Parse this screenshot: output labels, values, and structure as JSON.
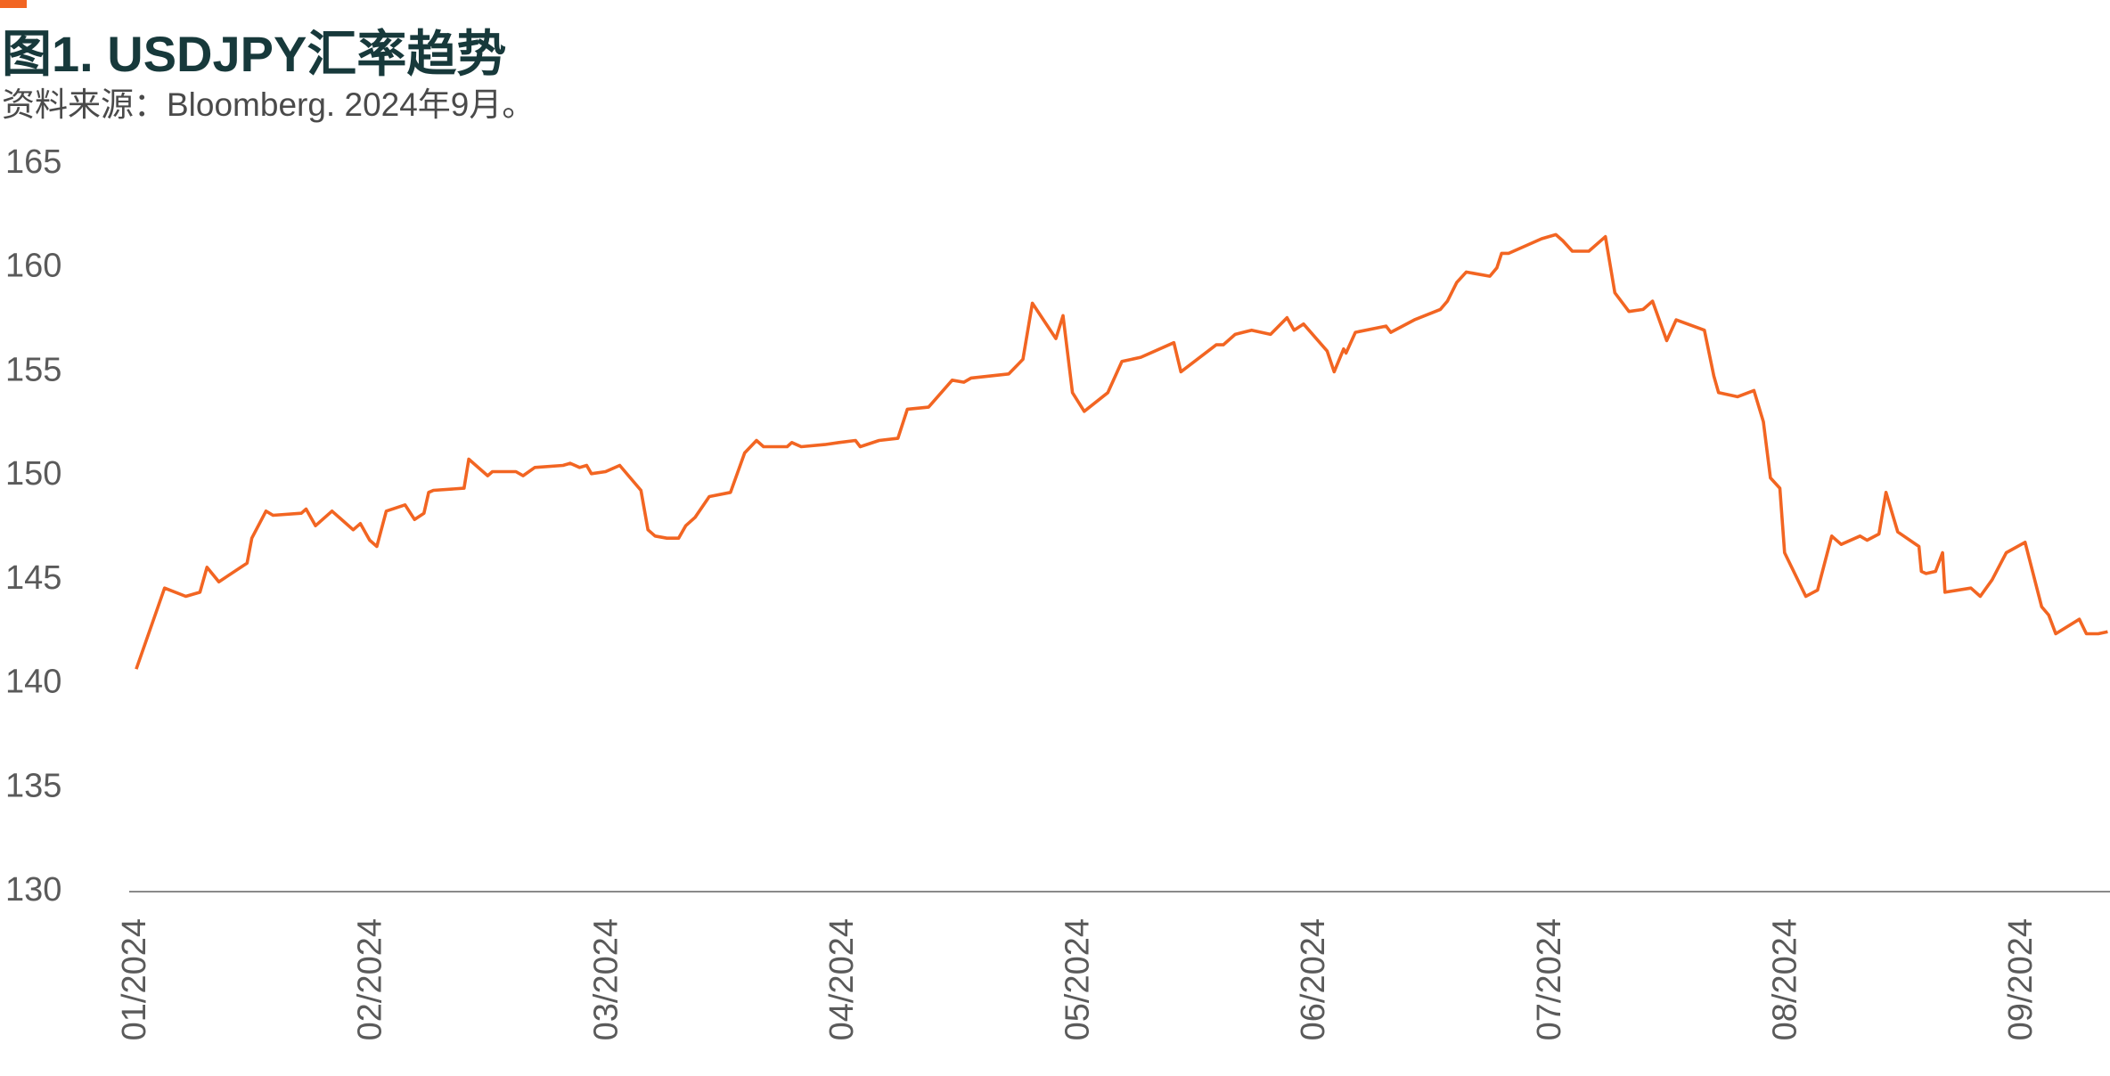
{
  "chart_data": {
    "type": "line",
    "title": "图1. USDJPY汇率趋势",
    "subtitle": "资料来源：Bloomberg. 2024年9月。",
    "x": [
      0,
      0.12,
      0.21,
      0.27,
      0.3,
      0.35,
      0.47,
      0.49,
      0.55,
      0.58,
      0.7,
      0.72,
      0.76,
      0.79,
      0.83,
      0.92,
      0.95,
      0.99,
      1.02,
      1.06,
      1.14,
      1.18,
      1.22,
      1.24,
      1.26,
      1.39,
      1.41,
      1.49,
      1.51,
      1.61,
      1.64,
      1.69,
      1.81,
      1.84,
      1.88,
      1.91,
      1.93,
      1.99,
      2.05,
      2.14,
      2.17,
      2.2,
      2.25,
      2.3,
      2.33,
      2.37,
      2.43,
      2.52,
      2.58,
      2.63,
      2.66,
      2.76,
      2.78,
      2.82,
      2.92,
      2.98,
      3.05,
      3.07,
      3.15,
      3.23,
      3.27,
      3.36,
      3.46,
      3.51,
      3.54,
      3.7,
      3.76,
      3.8,
      3.9,
      3.93,
      3.97,
      4.02,
      4.12,
      4.18,
      4.26,
      4.4,
      4.43,
      4.58,
      4.61,
      4.66,
      4.73,
      4.81,
      4.88,
      4.91,
      4.95,
      5.05,
      5.08,
      5.12,
      5.13,
      5.17,
      5.3,
      5.32,
      5.42,
      5.53,
      5.56,
      5.6,
      5.64,
      5.74,
      5.77,
      5.79,
      5.82,
      5.96,
      6.02,
      6.05,
      6.09,
      6.16,
      6.23,
      6.27,
      6.33,
      6.39,
      6.43,
      6.49,
      6.53,
      6.65,
      6.69,
      6.71,
      6.79,
      6.86,
      6.9,
      6.93,
      6.97,
      6.99,
      7.08,
      7.13,
      7.19,
      7.23,
      7.31,
      7.34,
      7.39,
      7.42,
      7.47,
      7.56,
      7.57,
      7.59,
      7.63,
      7.66,
      7.67,
      7.78,
      7.82,
      7.87,
      7.93,
      8.01,
      8.08,
      8.11,
      8.14,
      8.24,
      8.27,
      8.32,
      8.36
    ],
    "series": [
      {
        "name": "USDJPY",
        "color": "#f26522",
        "values": [
          140.7,
          144.6,
          144.2,
          144.4,
          145.6,
          144.9,
          145.8,
          147.0,
          148.3,
          148.1,
          148.2,
          148.4,
          147.6,
          147.9,
          148.3,
          147.4,
          147.7,
          146.9,
          146.6,
          148.3,
          148.6,
          147.9,
          148.2,
          149.2,
          149.3,
          149.4,
          150.8,
          150.0,
          150.2,
          150.2,
          150.0,
          150.4,
          150.5,
          150.6,
          150.4,
          150.5,
          150.1,
          150.2,
          150.5,
          149.3,
          147.4,
          147.1,
          147.0,
          147.0,
          147.6,
          148.0,
          149.0,
          149.2,
          151.1,
          151.7,
          151.4,
          151.4,
          151.6,
          151.4,
          151.5,
          151.6,
          151.7,
          151.4,
          151.7,
          151.8,
          153.2,
          153.3,
          154.6,
          154.5,
          154.7,
          154.9,
          155.6,
          158.3,
          156.6,
          157.7,
          154.0,
          153.1,
          154.0,
          155.5,
          155.7,
          156.4,
          155.0,
          156.3,
          156.3,
          156.8,
          157.0,
          156.8,
          157.6,
          157.0,
          157.3,
          156.0,
          155.0,
          156.1,
          155.9,
          156.9,
          157.2,
          156.9,
          157.5,
          158.0,
          158.4,
          159.3,
          159.8,
          159.6,
          160.0,
          160.7,
          160.7,
          161.4,
          161.6,
          161.3,
          160.8,
          160.8,
          161.5,
          158.8,
          157.9,
          158.0,
          158.4,
          156.5,
          157.5,
          157.0,
          154.8,
          154.0,
          153.8,
          154.1,
          152.6,
          149.9,
          149.4,
          146.3,
          144.2,
          144.5,
          147.1,
          146.7,
          147.1,
          146.9,
          147.2,
          149.2,
          147.3,
          146.6,
          145.4,
          145.3,
          145.4,
          146.3,
          144.4,
          144.6,
          144.2,
          145.0,
          146.3,
          146.8,
          143.7,
          143.3,
          142.4,
          143.1,
          142.4,
          142.4,
          142.5
        ]
      }
    ],
    "xlim": [
      -0.03,
      8.37
    ],
    "xticks": [
      {
        "value": 0,
        "label": "01/2024"
      },
      {
        "value": 1,
        "label": "02/2024"
      },
      {
        "value": 2,
        "label": "03/2024"
      },
      {
        "value": 3,
        "label": "04/2024"
      },
      {
        "value": 4,
        "label": "05/2024"
      },
      {
        "value": 5,
        "label": "06/2024"
      },
      {
        "value": 6,
        "label": "07/2024"
      },
      {
        "value": 7,
        "label": "08/2024"
      },
      {
        "value": 8,
        "label": "09/2024"
      }
    ],
    "ylim": [
      130,
      165
    ],
    "yticks": [
      130,
      135,
      140,
      145,
      150,
      155,
      160,
      165
    ],
    "grid": false
  }
}
